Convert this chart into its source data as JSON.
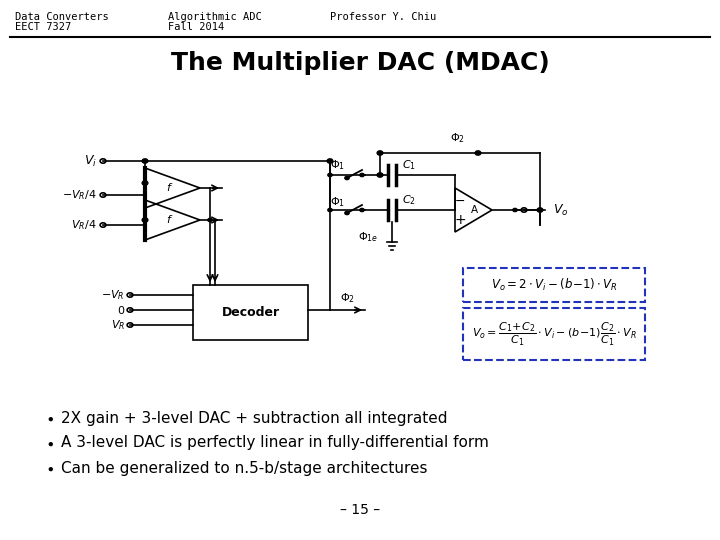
{
  "header_left1": "Data Converters",
  "header_left2": "EECT 7327",
  "header_mid1": "Algorithmic ADC",
  "header_mid2": "Fall 2014",
  "header_right": "Professor Y. Chiu",
  "title": "The Multiplier DAC (MDAC)",
  "bullet1": "2X gain + 3-level DAC + subtraction all integrated",
  "bullet2": "A 3-level DAC is perfectly linear in fully-differential form",
  "bullet3": "Can be generalized to n.5-b/stage architectures",
  "footer": "– 15 –",
  "bg_color": "#ffffff",
  "text_color": "#000000",
  "header_fontsize": 7.5,
  "title_fontsize": 18,
  "bullet_fontsize": 11,
  "footer_fontsize": 10,
  "box_color": "#2233bb",
  "circuit_color": "#000000"
}
